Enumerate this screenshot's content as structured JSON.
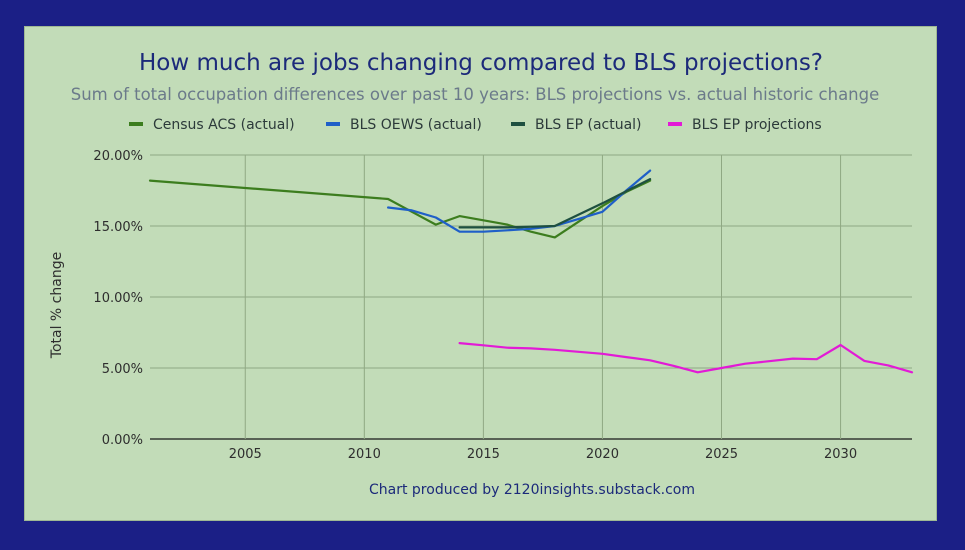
{
  "chart_data": {
    "type": "line",
    "title": "How much are jobs changing compared to BLS projections?",
    "subtitle": "Sum of total occupation differences over past 10 years: BLS projections vs. actual historic change",
    "xlabel": "",
    "ylabel": "Total % change",
    "footer": "Chart produced by 2120insights.substack.com",
    "xlim": [
      2001,
      2033
    ],
    "ylim": [
      0,
      0.2
    ],
    "x_ticks": [
      2005,
      2010,
      2015,
      2020,
      2025,
      2030
    ],
    "y_ticks": [
      0,
      0.05,
      0.1,
      0.15,
      0.2
    ],
    "y_tick_labels": [
      "0.00%",
      "5.00%",
      "10.00%",
      "15.00%",
      "20.00%"
    ],
    "grid": true,
    "legend_position": "top",
    "series": [
      {
        "name": "Census ACS (actual)",
        "color": "#3c7d1e",
        "x": [
          2001,
          2011,
          2012,
          2013,
          2014,
          2015,
          2016,
          2017,
          2018,
          2019,
          2020,
          2021,
          2022
        ],
        "values": [
          0.182,
          0.169,
          0.16,
          0.151,
          0.157,
          0.154,
          0.151,
          0.146,
          0.142,
          0.153,
          0.164,
          0.174,
          0.182
        ]
      },
      {
        "name": "BLS OEWS (actual)",
        "color": "#1f5fc8",
        "x": [
          2011,
          2012,
          2013,
          2014,
          2015,
          2016,
          2017,
          2018,
          2019,
          2020,
          2021,
          2022
        ],
        "values": [
          0.163,
          0.161,
          0.156,
          0.146,
          0.146,
          0.147,
          0.148,
          0.15,
          0.155,
          0.16,
          0.175,
          0.189
        ]
      },
      {
        "name": "BLS EP (actual)",
        "color": "#1e5040",
        "x": [
          2014,
          2016,
          2018,
          2020,
          2022
        ],
        "values": [
          0.149,
          0.149,
          0.15,
          0.166,
          0.183
        ]
      },
      {
        "name": "BLS EP projections",
        "color": "#e21ad6",
        "x": [
          2014,
          2015,
          2016,
          2017,
          2018,
          2019,
          2020,
          2021,
          2022,
          2023,
          2024,
          2025,
          2026,
          2027,
          2028,
          2029,
          2030,
          2031,
          2032,
          2033
        ],
        "values": [
          0.0675,
          0.066,
          0.0643,
          0.0638,
          0.0628,
          0.0614,
          0.06,
          0.0577,
          0.0554,
          0.0515,
          0.047,
          0.05,
          0.053,
          0.0548,
          0.0566,
          0.0562,
          0.0662,
          0.055,
          0.0518,
          0.047
        ]
      }
    ]
  }
}
